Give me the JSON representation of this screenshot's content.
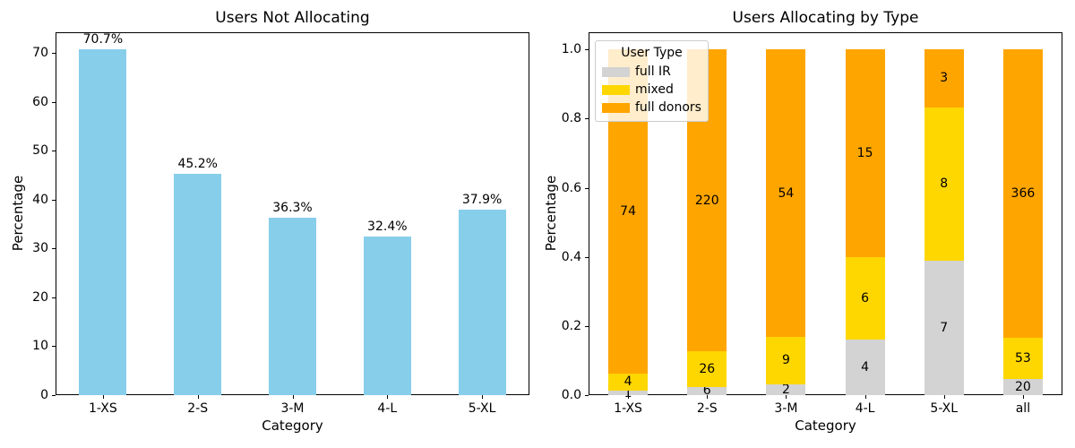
{
  "figure": {
    "background": "#ffffff",
    "text_color": "#000000"
  },
  "chart_data": [
    {
      "type": "bar",
      "title": "Users Not Allocating",
      "xlabel": "Category",
      "ylabel": "Percentage",
      "categories": [
        "1-XS",
        "2-S",
        "3-M",
        "4-L",
        "5-XL"
      ],
      "values": [
        70.7,
        45.2,
        36.3,
        32.4,
        37.9
      ],
      "bar_labels": [
        "70.7%",
        "45.2%",
        "36.3%",
        "32.4%",
        "37.9%"
      ],
      "bar_color": "#87CEEB",
      "ylim": [
        0,
        74.235
      ],
      "yticks": [
        0,
        10,
        20,
        30,
        40,
        50,
        60,
        70
      ],
      "ytick_labels": [
        "0",
        "10",
        "20",
        "30",
        "40",
        "50",
        "60",
        "70"
      ],
      "grid": false,
      "legend": null
    },
    {
      "type": "bar",
      "stacked": true,
      "normalized": true,
      "title": "Users Allocating by Type",
      "xlabel": "Category",
      "ylabel": "Percentage",
      "categories": [
        "1-XS",
        "2-S",
        "3-M",
        "4-L",
        "5-XL",
        "all"
      ],
      "series": [
        {
          "name": "full IR",
          "color": "#D3D3D3",
          "values": [
            1,
            6,
            2,
            4,
            7,
            20
          ]
        },
        {
          "name": "mixed",
          "color": "#FFD700",
          "values": [
            4,
            26,
            9,
            6,
            8,
            53
          ]
        },
        {
          "name": "full donors",
          "color": "#FFA500",
          "values": [
            74,
            220,
            54,
            15,
            3,
            366
          ]
        }
      ],
      "ylim": [
        0,
        1.05
      ],
      "yticks": [
        0,
        0.2,
        0.4,
        0.6,
        0.8,
        1.0
      ],
      "ytick_labels": [
        "0.0",
        "0.2",
        "0.4",
        "0.6",
        "0.8",
        "1.0"
      ],
      "grid": false,
      "legend": {
        "title": "User Type",
        "position": "upper-left"
      }
    }
  ]
}
